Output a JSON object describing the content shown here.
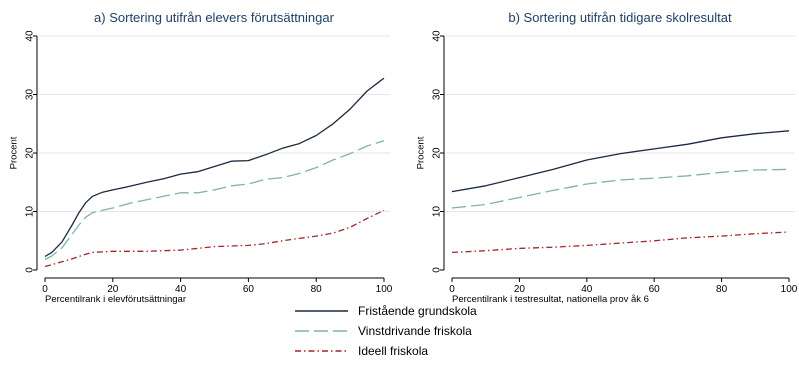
{
  "chart_data": [
    {
      "type": "line",
      "title": "a) Sortering utifrån elevers förutsättningar",
      "xlabel": "Percentilrank i elevförutsättningar",
      "ylabel": "Procent",
      "xlim": [
        0,
        100
      ],
      "ylim": [
        0,
        40
      ],
      "xticks": [
        "0",
        "20",
        "40",
        "60",
        "80",
        "100"
      ],
      "yticks": [
        "0",
        "10",
        "20",
        "30",
        "40"
      ],
      "grid": "horizontal",
      "x": [
        0,
        2,
        5,
        8,
        10,
        12,
        14,
        17,
        20,
        25,
        30,
        35,
        40,
        45,
        50,
        55,
        60,
        65,
        70,
        75,
        80,
        85,
        90,
        95,
        100
      ],
      "series": [
        {
          "name": "Fristående grundskola",
          "values": [
            2.3,
            3.0,
            4.8,
            7.7,
            9.8,
            11.5,
            12.6,
            13.3,
            13.7,
            14.3,
            15.0,
            15.6,
            16.4,
            16.8,
            17.7,
            18.6,
            18.7,
            19.7,
            20.8,
            21.6,
            23.0,
            25.0,
            27.5,
            30.6,
            32.8
          ]
        },
        {
          "name": "Vinstdrivande friskola",
          "values": [
            1.8,
            2.4,
            3.8,
            6.1,
            7.7,
            9.0,
            9.8,
            10.2,
            10.6,
            11.4,
            12.0,
            12.6,
            13.2,
            13.2,
            13.7,
            14.4,
            14.7,
            15.5,
            15.8,
            16.5,
            17.5,
            18.8,
            19.9,
            21.2,
            22.1
          ]
        },
        {
          "name": "Ideell friskola",
          "values": [
            0.6,
            0.9,
            1.4,
            1.9,
            2.3,
            2.7,
            3.0,
            3.1,
            3.2,
            3.2,
            3.2,
            3.3,
            3.4,
            3.7,
            4.0,
            4.1,
            4.2,
            4.5,
            5.0,
            5.4,
            5.8,
            6.3,
            7.3,
            8.8,
            10.2
          ]
        }
      ]
    },
    {
      "type": "line",
      "title": "b) Sortering utifrån tidigare skolresultat",
      "xlabel": "Percentilrank i testresultat, nationella prov åk 6",
      "ylabel": "Procent",
      "xlim": [
        0,
        100
      ],
      "ylim": [
        0,
        40
      ],
      "xticks": [
        "0",
        "20",
        "40",
        "60",
        "80",
        "100"
      ],
      "yticks": [
        "0",
        "10",
        "20",
        "30",
        "40"
      ],
      "grid": "horizontal",
      "x": [
        0,
        10,
        20,
        30,
        40,
        50,
        60,
        70,
        80,
        90,
        100
      ],
      "series": [
        {
          "name": "Fristående grundskola",
          "values": [
            13.4,
            14.4,
            15.8,
            17.2,
            18.8,
            19.9,
            20.7,
            21.5,
            22.6,
            23.3,
            23.8
          ]
        },
        {
          "name": "Vinstdrivande friskola",
          "values": [
            10.6,
            11.2,
            12.4,
            13.6,
            14.7,
            15.4,
            15.7,
            16.1,
            16.7,
            17.1,
            17.2
          ]
        },
        {
          "name": "Ideell friskola",
          "values": [
            3.0,
            3.3,
            3.7,
            3.9,
            4.2,
            4.6,
            5.0,
            5.5,
            5.8,
            6.2,
            6.5
          ]
        }
      ]
    }
  ],
  "legend": {
    "placement": "bottom-center",
    "entries": [
      {
        "label": "Fristående grundskola",
        "color": "#1b2a3e",
        "dash": "solid"
      },
      {
        "label": "Vinstdrivande friskola",
        "color": "#7fb4a6",
        "dash": "long-dash"
      },
      {
        "label": "Ideell friskola",
        "color": "#a0272b",
        "dash": "dash-dot"
      }
    ]
  },
  "colors": {
    "title": "#1f3f66",
    "series": [
      "#1b2a3e",
      "#7fb4a6",
      "#a0272b"
    ],
    "grid": "#e6e6e6",
    "axis": "#000000"
  }
}
